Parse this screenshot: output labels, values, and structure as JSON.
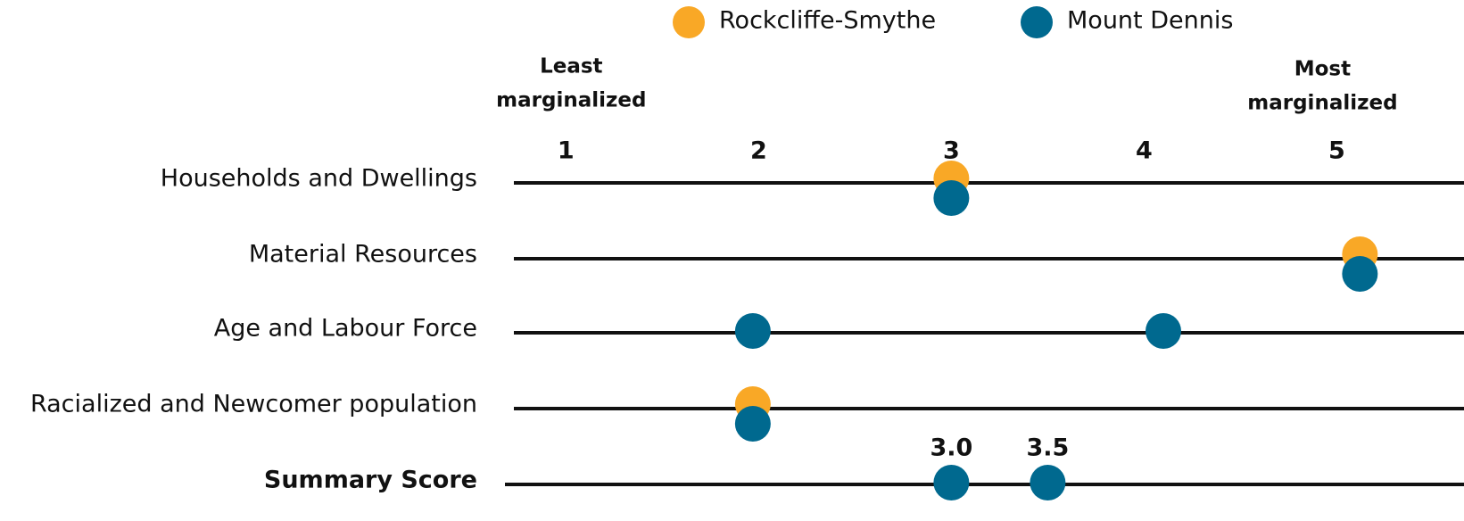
{
  "chart_data": {
    "type": "dot",
    "categories": [
      "Households and Dwellings",
      "Material Resources",
      "Age and Labour Force",
      "Racialized and Newcomer population",
      "Summary Score"
    ],
    "series": [
      {
        "name": "Rockcliffe-Smythe",
        "color": "#f9a826",
        "point_colors": [
          "#f9a826",
          "#f9a826",
          "#00698f",
          "#f9a826",
          "#00698f"
        ],
        "values": [
          3,
          5.12,
          4.1,
          1.97,
          3.0
        ],
        "value_labels": [
          null,
          null,
          null,
          null,
          "3.0"
        ]
      },
      {
        "name": "Mount Dennis",
        "color": "#00698f",
        "values": [
          3,
          5.12,
          1.97,
          1.97,
          3.5
        ],
        "value_labels": [
          null,
          null,
          null,
          null,
          "3.5"
        ]
      }
    ],
    "xlim": [
      0.73,
      5.66
    ],
    "xticks": [
      1,
      2,
      3,
      4,
      5
    ],
    "annotations": [
      {
        "text": [
          "Least",
          "marginalized"
        ],
        "at": 1
      },
      {
        "text": [
          "Most",
          "marginalized"
        ],
        "at": 5
      }
    ],
    "line_color": "#111111"
  }
}
